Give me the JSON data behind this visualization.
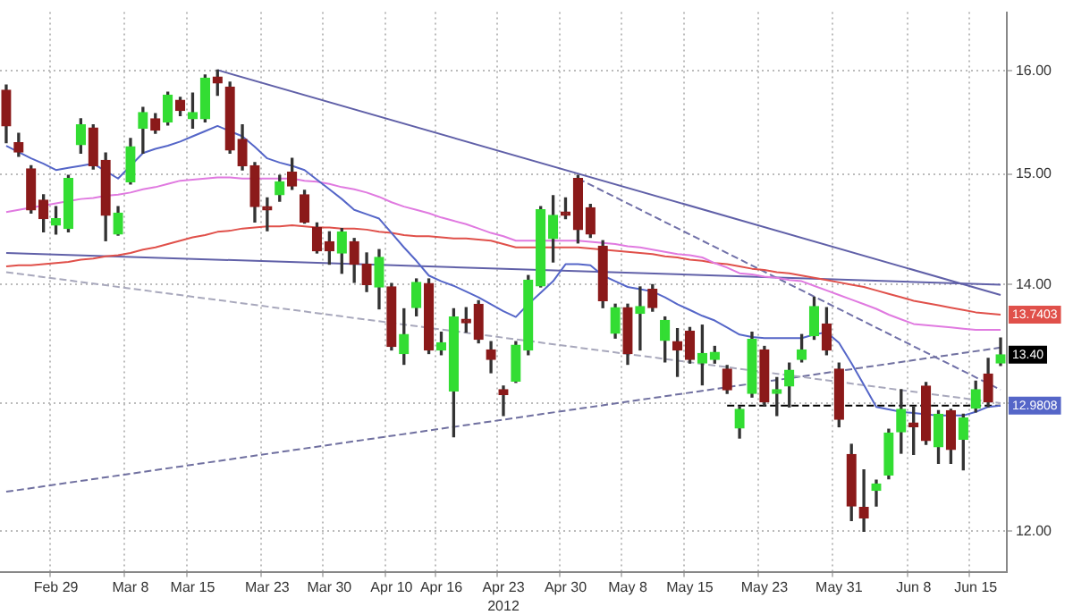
{
  "chart_data": {
    "type": "candlestick",
    "xlabel": "2012",
    "categories": [
      null,
      null,
      null,
      null,
      "Feb 29",
      null,
      null,
      null,
      null,
      null,
      "Mar 8",
      null,
      null,
      null,
      null,
      "Mar 15",
      null,
      null,
      null,
      null,
      null,
      "Mar 23",
      null,
      null,
      null,
      null,
      "Mar 30",
      null,
      null,
      null,
      null,
      "Apr 10",
      null,
      null,
      null,
      "Apr 16",
      null,
      null,
      null,
      null,
      "Apr 23",
      null,
      null,
      null,
      null,
      "Apr 30",
      null,
      null,
      null,
      null,
      "May 8",
      null,
      null,
      null,
      null,
      "May 15",
      null,
      null,
      null,
      null,
      null,
      "May 23",
      null,
      null,
      null,
      null,
      null,
      "May 31",
      null,
      null,
      null,
      null,
      null,
      "Jun 8",
      null,
      null,
      null,
      null,
      "Jun 15",
      null,
      null
    ],
    "ohlc": [
      [
        15.81,
        15.86,
        15.3,
        15.46
      ],
      [
        15.3,
        15.39,
        15.17,
        15.21
      ],
      [
        15.05,
        15.08,
        14.64,
        14.67
      ],
      [
        14.76,
        14.81,
        14.47,
        14.59
      ],
      [
        14.53,
        14.7,
        14.45,
        14.59
      ],
      [
        14.5,
        14.99,
        14.47,
        14.96
      ],
      [
        15.28,
        15.53,
        15.2,
        15.47
      ],
      [
        15.44,
        15.47,
        15.05,
        15.08
      ],
      [
        15.13,
        15.2,
        14.39,
        14.62
      ],
      [
        14.45,
        14.7,
        14.44,
        14.64
      ],
      [
        14.93,
        15.34,
        14.91,
        15.26
      ],
      [
        15.44,
        15.64,
        15.2,
        15.59
      ],
      [
        15.53,
        15.58,
        15.39,
        15.42
      ],
      [
        15.5,
        15.79,
        15.47,
        15.76
      ],
      [
        15.71,
        15.74,
        15.56,
        15.61
      ],
      [
        15.53,
        15.78,
        15.44,
        15.59
      ],
      [
        15.53,
        15.96,
        15.5,
        15.93
      ],
      [
        15.94,
        16.01,
        15.76,
        15.88
      ],
      [
        15.84,
        15.89,
        15.2,
        15.23
      ],
      [
        15.33,
        15.47,
        15.04,
        15.08
      ],
      [
        15.08,
        15.11,
        14.56,
        14.7
      ],
      [
        14.7,
        14.78,
        14.48,
        14.67
      ],
      [
        14.81,
        14.99,
        14.75,
        14.93
      ],
      [
        15.02,
        15.15,
        14.86,
        14.89
      ],
      [
        14.81,
        14.85,
        14.55,
        14.56
      ],
      [
        14.51,
        14.55,
        14.28,
        14.3
      ],
      [
        14.38,
        14.47,
        14.18,
        14.3
      ],
      [
        14.28,
        14.5,
        14.1,
        14.47
      ],
      [
        14.38,
        14.41,
        14.02,
        14.18
      ],
      [
        14.18,
        14.28,
        13.94,
        14.0
      ],
      [
        13.98,
        14.31,
        13.79,
        14.24
      ],
      [
        13.98,
        14.01,
        13.44,
        13.47
      ],
      [
        13.41,
        13.79,
        13.32,
        13.57
      ],
      [
        13.8,
        14.05,
        13.73,
        14.02
      ],
      [
        14.01,
        14.05,
        13.41,
        13.44
      ],
      [
        13.44,
        13.59,
        13.4,
        13.5
      ],
      [
        13.1,
        13.79,
        12.73,
        13.72
      ],
      [
        13.7,
        13.8,
        13.59,
        13.67
      ],
      [
        13.83,
        13.86,
        13.5,
        13.53
      ],
      [
        13.44,
        13.51,
        13.25,
        13.36
      ],
      [
        13.11,
        13.14,
        12.9,
        13.07
      ],
      [
        13.18,
        13.51,
        13.17,
        13.48
      ],
      [
        13.44,
        14.08,
        13.4,
        14.04
      ],
      [
        13.99,
        14.7,
        13.98,
        14.67
      ],
      [
        14.41,
        14.8,
        14.2,
        14.62
      ],
      [
        14.65,
        14.78,
        14.59,
        14.62
      ],
      [
        14.96,
        14.99,
        14.37,
        14.49
      ],
      [
        14.69,
        14.72,
        14.42,
        14.45
      ],
      [
        14.34,
        14.39,
        13.8,
        13.86
      ],
      [
        13.58,
        13.83,
        13.54,
        13.8
      ],
      [
        13.8,
        13.83,
        13.32,
        13.41
      ],
      [
        13.75,
        13.98,
        13.44,
        13.81
      ],
      [
        13.96,
        14.0,
        13.77,
        13.8
      ],
      [
        13.52,
        13.72,
        13.34,
        13.69
      ],
      [
        13.51,
        13.62,
        13.22,
        13.44
      ],
      [
        13.6,
        13.63,
        13.33,
        13.36
      ],
      [
        13.33,
        13.65,
        13.15,
        13.41
      ],
      [
        13.36,
        13.47,
        13.33,
        13.42
      ],
      [
        13.28,
        13.31,
        13.08,
        13.11
      ],
      [
        12.8,
        12.97,
        12.72,
        12.95
      ],
      [
        13.08,
        13.59,
        13.05,
        13.53
      ],
      [
        13.44,
        13.47,
        12.98,
        13.01
      ],
      [
        13.08,
        13.21,
        12.9,
        13.11
      ],
      [
        13.14,
        13.33,
        12.97,
        13.27
      ],
      [
        13.36,
        13.57,
        13.34,
        13.44
      ],
      [
        13.56,
        13.89,
        13.53,
        13.81
      ],
      [
        13.66,
        13.8,
        13.4,
        13.44
      ],
      [
        13.28,
        13.33,
        12.81,
        12.87
      ],
      [
        12.59,
        12.67,
        12.08,
        12.19
      ],
      [
        12.18,
        12.47,
        12.0,
        12.1
      ],
      [
        12.31,
        12.39,
        12.19,
        12.36
      ],
      [
        12.43,
        12.79,
        12.4,
        12.76
      ],
      [
        12.77,
        13.11,
        12.6,
        12.95
      ],
      [
        12.84,
        12.97,
        12.59,
        12.81
      ],
      [
        13.14,
        13.17,
        12.67,
        12.7
      ],
      [
        12.65,
        12.94,
        12.52,
        12.91
      ],
      [
        12.94,
        12.95,
        12.52,
        12.63
      ],
      [
        12.71,
        12.91,
        12.47,
        12.88
      ],
      [
        12.96,
        13.18,
        12.93,
        13.11
      ],
      [
        13.24,
        13.37,
        12.97,
        13.01
      ],
      [
        13.33,
        13.54,
        13.31,
        13.4
      ]
    ],
    "colors": [
      "#8b1a1a",
      "#8b1a1a",
      "#8b1a1a",
      "#8b1a1a",
      "#33dd33",
      "#33dd33",
      "#33dd33",
      "#8b1a1a",
      "#8b1a1a",
      "#33dd33",
      "#33dd33",
      "#33dd33",
      "#8b1a1a",
      "#33dd33",
      "#8b1a1a",
      "#33dd33",
      "#33dd33",
      "#8b1a1a",
      "#8b1a1a",
      "#8b1a1a",
      "#8b1a1a",
      "#8b1a1a",
      "#33dd33",
      "#8b1a1a",
      "#8b1a1a",
      "#8b1a1a",
      "#8b1a1a",
      "#33dd33",
      "#8b1a1a",
      "#8b1a1a",
      "#33dd33",
      "#8b1a1a",
      "#33dd33",
      "#33dd33",
      "#8b1a1a",
      "#33dd33",
      "#33dd33",
      "#8b1a1a",
      "#8b1a1a",
      "#8b1a1a",
      "#8b1a1a",
      "#33dd33",
      "#33dd33",
      "#33dd33",
      "#33dd33",
      "#8b1a1a",
      "#8b1a1a",
      "#8b1a1a",
      "#8b1a1a",
      "#33dd33",
      "#8b1a1a",
      "#33dd33",
      "#8b1a1a",
      "#33dd33",
      "#8b1a1a",
      "#8b1a1a",
      "#33dd33",
      "#33dd33",
      "#8b1a1a",
      "#33dd33",
      "#33dd33",
      "#8b1a1a",
      "#33dd33",
      "#33dd33",
      "#33dd33",
      "#33dd33",
      "#8b1a1a",
      "#8b1a1a",
      "#8b1a1a",
      "#8b1a1a",
      "#33dd33",
      "#33dd33",
      "#33dd33",
      "#8b1a1a",
      "#8b1a1a",
      "#33dd33",
      "#8b1a1a",
      "#33dd33",
      "#33dd33",
      "#8b1a1a",
      "#33dd33"
    ],
    "series": [
      {
        "type": "line",
        "color": "#5566c8",
        "line_style": "solid",
        "values": [
          15.27,
          15.21,
          15.15,
          15.1,
          15.04,
          15.06,
          15.08,
          15.1,
          15.03,
          14.96,
          15.08,
          15.2,
          15.24,
          15.27,
          15.31,
          15.36,
          15.41,
          15.46,
          15.41,
          15.36,
          15.26,
          15.15,
          15.11,
          15.08,
          15.04,
          14.95,
          14.86,
          14.77,
          14.67,
          14.63,
          14.59,
          14.46,
          14.33,
          14.21,
          14.08,
          14.03,
          13.99,
          13.94,
          13.89,
          13.83,
          13.77,
          13.72,
          13.83,
          13.93,
          14.03,
          14.18,
          14.18,
          14.17,
          14.08,
          14.03,
          13.98,
          13.96,
          13.94,
          13.89,
          13.83,
          13.78,
          13.73,
          13.69,
          13.63,
          13.57,
          13.55,
          13.54,
          13.54,
          13.54,
          13.54,
          13.57,
          13.59,
          13.5,
          13.33,
          13.15,
          12.97,
          12.95,
          12.93,
          12.92,
          12.91,
          12.9,
          12.9,
          12.9,
          12.93,
          12.97,
          12.98
        ]
      },
      {
        "type": "line",
        "color": "#e07ae0",
        "line_style": "solid",
        "values": [
          14.65,
          14.67,
          14.69,
          14.71,
          14.73,
          14.75,
          14.77,
          14.78,
          14.8,
          14.81,
          14.83,
          14.86,
          14.88,
          14.91,
          14.94,
          14.95,
          14.96,
          14.97,
          14.97,
          14.96,
          14.96,
          14.96,
          14.96,
          14.96,
          14.94,
          14.93,
          14.91,
          14.88,
          14.86,
          14.83,
          14.79,
          14.74,
          14.7,
          14.67,
          14.64,
          14.6,
          14.57,
          14.54,
          14.5,
          14.46,
          14.43,
          14.39,
          14.39,
          14.39,
          14.39,
          14.39,
          14.39,
          14.38,
          14.37,
          14.36,
          14.34,
          14.33,
          14.31,
          14.29,
          14.27,
          14.26,
          14.24,
          14.19,
          14.15,
          14.1,
          14.09,
          14.07,
          14.06,
          14.04,
          14.03,
          13.99,
          13.95,
          13.91,
          13.87,
          13.83,
          13.79,
          13.74,
          13.7,
          13.66,
          13.65,
          13.64,
          13.63,
          13.62,
          13.61,
          13.61,
          13.61
        ]
      },
      {
        "type": "line",
        "color": "#e0504a",
        "line_style": "solid",
        "values": [
          14.16,
          14.17,
          14.17,
          14.18,
          14.19,
          14.2,
          14.22,
          14.23,
          14.25,
          14.26,
          14.28,
          14.31,
          14.33,
          14.36,
          14.39,
          14.42,
          14.44,
          14.47,
          14.48,
          14.5,
          14.51,
          14.52,
          14.52,
          14.53,
          14.52,
          14.51,
          14.51,
          14.5,
          14.5,
          14.49,
          14.47,
          14.46,
          14.44,
          14.43,
          14.43,
          14.42,
          14.41,
          14.41,
          14.4,
          14.39,
          14.36,
          14.33,
          14.33,
          14.33,
          14.33,
          14.33,
          14.33,
          14.32,
          14.31,
          14.3,
          14.29,
          14.28,
          14.27,
          14.25,
          14.24,
          14.22,
          14.21,
          14.19,
          14.18,
          14.16,
          14.14,
          14.13,
          14.11,
          14.1,
          14.08,
          14.06,
          14.04,
          14.02,
          14.0,
          13.98,
          13.95,
          13.92,
          13.89,
          13.86,
          13.84,
          13.82,
          13.8,
          13.78,
          13.76,
          13.75,
          13.74
        ]
      },
      {
        "type": "line",
        "color": "#6060a8",
        "line_style": "solid",
        "values": [
          null,
          null,
          null,
          null,
          null,
          null,
          null,
          null,
          null,
          null,
          null,
          null,
          null,
          null,
          null,
          null,
          null,
          16.01,
          null,
          null,
          null,
          null,
          null,
          null,
          null,
          null,
          null,
          null,
          null,
          null,
          null,
          null,
          null,
          null,
          null,
          null,
          null,
          null,
          null,
          null,
          null,
          null,
          null,
          null,
          null,
          null,
          null,
          null,
          null,
          null,
          null,
          null,
          null,
          null,
          null,
          null,
          null,
          null,
          null,
          null,
          null,
          null,
          null,
          null,
          null,
          null,
          null,
          null,
          null,
          null,
          null,
          null,
          null,
          null,
          null,
          null,
          null,
          null,
          null,
          null,
          13.91
        ]
      },
      {
        "type": "line",
        "color": "#6060a8",
        "line_style": "solid",
        "values": [
          14.28,
          null,
          null,
          null,
          null,
          null,
          null,
          null,
          null,
          null,
          null,
          null,
          null,
          null,
          null,
          null,
          null,
          null,
          null,
          null,
          null,
          null,
          null,
          null,
          null,
          null,
          null,
          null,
          null,
          null,
          null,
          null,
          null,
          null,
          null,
          null,
          null,
          null,
          null,
          null,
          null,
          null,
          null,
          null,
          null,
          null,
          null,
          null,
          null,
          null,
          null,
          null,
          null,
          null,
          null,
          null,
          null,
          null,
          null,
          null,
          null,
          null,
          null,
          null,
          null,
          null,
          null,
          null,
          null,
          null,
          null,
          null,
          null,
          null,
          null,
          null,
          null,
          null,
          null,
          null,
          14.0
        ]
      },
      {
        "type": "line",
        "color": "#a8a8bc",
        "line_style": "dashed",
        "values": [
          14.11,
          null,
          null,
          null,
          null,
          null,
          null,
          null,
          null,
          null,
          null,
          null,
          null,
          null,
          null,
          null,
          null,
          null,
          null,
          null,
          null,
          null,
          null,
          null,
          null,
          null,
          null,
          null,
          null,
          null,
          null,
          null,
          null,
          null,
          null,
          null,
          null,
          null,
          null,
          null,
          null,
          null,
          null,
          null,
          null,
          null,
          null,
          null,
          null,
          null,
          null,
          null,
          null,
          null,
          null,
          null,
          null,
          null,
          null,
          null,
          null,
          null,
          null,
          null,
          null,
          null,
          null,
          null,
          null,
          null,
          null,
          null,
          null,
          null,
          null,
          null,
          null,
          null,
          null,
          null,
          13.0
        ]
      },
      {
        "type": "line",
        "color": "#7070a0",
        "line_style": "dashed",
        "values": [
          12.3,
          null,
          null,
          null,
          null,
          null,
          null,
          null,
          null,
          null,
          null,
          null,
          null,
          null,
          null,
          null,
          null,
          null,
          null,
          null,
          null,
          null,
          null,
          null,
          null,
          null,
          null,
          null,
          null,
          null,
          null,
          null,
          null,
          null,
          null,
          null,
          null,
          null,
          null,
          null,
          null,
          null,
          null,
          null,
          null,
          null,
          null,
          null,
          null,
          null,
          null,
          null,
          null,
          null,
          null,
          null,
          null,
          null,
          null,
          null,
          null,
          null,
          null,
          null,
          null,
          null,
          null,
          null,
          null,
          null,
          null,
          null,
          null,
          null,
          null,
          null,
          null,
          null,
          null,
          null,
          13.46
        ]
      },
      {
        "type": "line",
        "color": "#7070a8",
        "line_style": "dashed",
        "values": [
          null,
          null,
          null,
          null,
          null,
          null,
          null,
          null,
          null,
          null,
          null,
          null,
          null,
          null,
          null,
          null,
          null,
          null,
          null,
          null,
          null,
          null,
          null,
          null,
          null,
          null,
          null,
          null,
          null,
          null,
          null,
          null,
          null,
          null,
          null,
          null,
          null,
          null,
          null,
          null,
          null,
          null,
          null,
          null,
          null,
          null,
          14.96,
          null,
          null,
          null,
          null,
          null,
          null,
          null,
          null,
          null,
          null,
          null,
          null,
          null,
          null,
          null,
          null,
          null,
          null,
          null,
          null,
          null,
          null,
          null,
          null,
          null,
          null,
          null,
          null,
          null,
          null,
          null,
          null,
          null,
          13.11
        ]
      },
      {
        "type": "line",
        "color": "#000000",
        "line_style": "dashed",
        "values": [
          null,
          null,
          null,
          null,
          null,
          null,
          null,
          null,
          null,
          null,
          null,
          null,
          null,
          null,
          null,
          null,
          null,
          null,
          null,
          null,
          null,
          null,
          null,
          null,
          null,
          null,
          null,
          null,
          null,
          null,
          null,
          null,
          null,
          null,
          null,
          null,
          null,
          null,
          null,
          null,
          null,
          null,
          null,
          null,
          null,
          null,
          null,
          null,
          null,
          null,
          null,
          null,
          null,
          null,
          null,
          null,
          null,
          null,
          12.98,
          null,
          null,
          null,
          null,
          null,
          null,
          null,
          null,
          null,
          null,
          null,
          null,
          null,
          null,
          null,
          null,
          null,
          null,
          null,
          null,
          null,
          12.98
        ]
      }
    ],
    "ylim": [
      11.7,
      16.6
    ],
    "log": true,
    "yticks": [
      {
        "value": 12,
        "label": "12.00"
      },
      {
        "value": 13,
        "label": null
      },
      {
        "value": 14,
        "label": "14.00"
      },
      {
        "value": 15,
        "label": "15.00"
      },
      {
        "value": 16,
        "label": "16.00"
      }
    ],
    "grid": true,
    "marker": "none",
    "annotations": [
      {
        "text": "13.7403",
        "y": 13.74
      },
      {
        "text": "13.40",
        "y": 13.4
      },
      {
        "text": "12.9808",
        "y": 12.98
      }
    ]
  }
}
